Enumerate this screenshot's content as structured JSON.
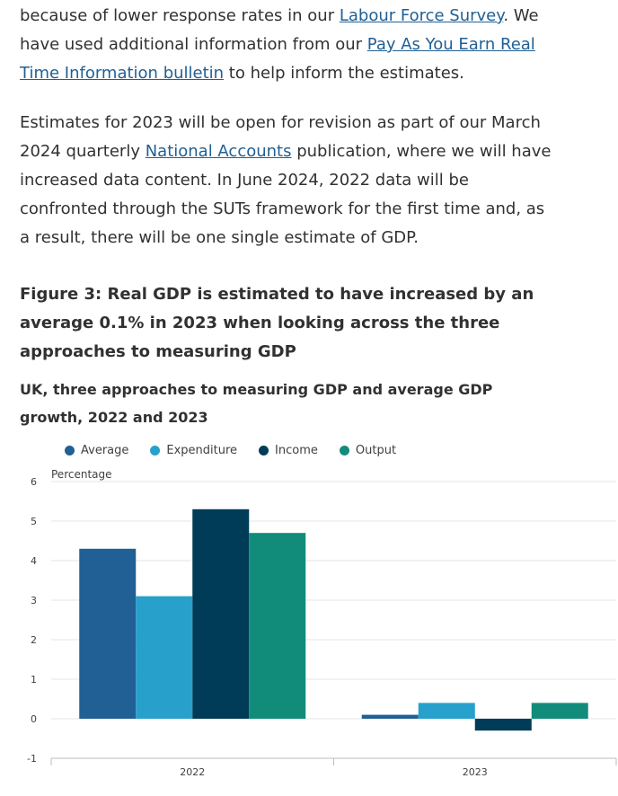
{
  "intro": {
    "p1_a": "because of lower response rates in our ",
    "p1_link1": "Labour Force Survey",
    "p1_b": ". We have used additional information from our ",
    "p1_link2": "Pay As You Earn Real Time Information bulletin",
    "p1_c": " to help inform the estimates.",
    "p2_a": "Estimates for 2023 will be open for revision as part of our March 2024 quarterly ",
    "p2_link": "National Accounts",
    "p2_b": " publication, where we will have increased data content. In June 2024, 2022 data will be confronted through the SUTs framework for the first time and, as a result, there will be one single estimate of GDP."
  },
  "figure": {
    "title": "Figure 3: Real GDP is estimated to have increased by an average 0.1% in 2023 when looking across the three approaches to measuring GDP",
    "subtitle": "UK, three approaches to measuring GDP and average GDP growth, 2022 and 2023"
  },
  "chart_data": {
    "type": "bar",
    "categories": [
      "2022",
      "2023"
    ],
    "series": [
      {
        "name": "Average",
        "color": "#206095",
        "values": [
          4.3,
          0.1
        ]
      },
      {
        "name": "Expenditure",
        "color": "#27a0cc",
        "values": [
          3.1,
          0.4
        ]
      },
      {
        "name": "Income",
        "color": "#003c57",
        "values": [
          5.3,
          -0.3
        ]
      },
      {
        "name": "Output",
        "color": "#118c7b",
        "values": [
          4.7,
          0.4
        ]
      }
    ],
    "ylabel": "Percentage",
    "ylim": [
      -1,
      6
    ],
    "yticks": [
      "-1",
      "0",
      "1",
      "2",
      "3",
      "4",
      "5",
      "6"
    ],
    "grid": true,
    "legend_position": "top-left"
  }
}
